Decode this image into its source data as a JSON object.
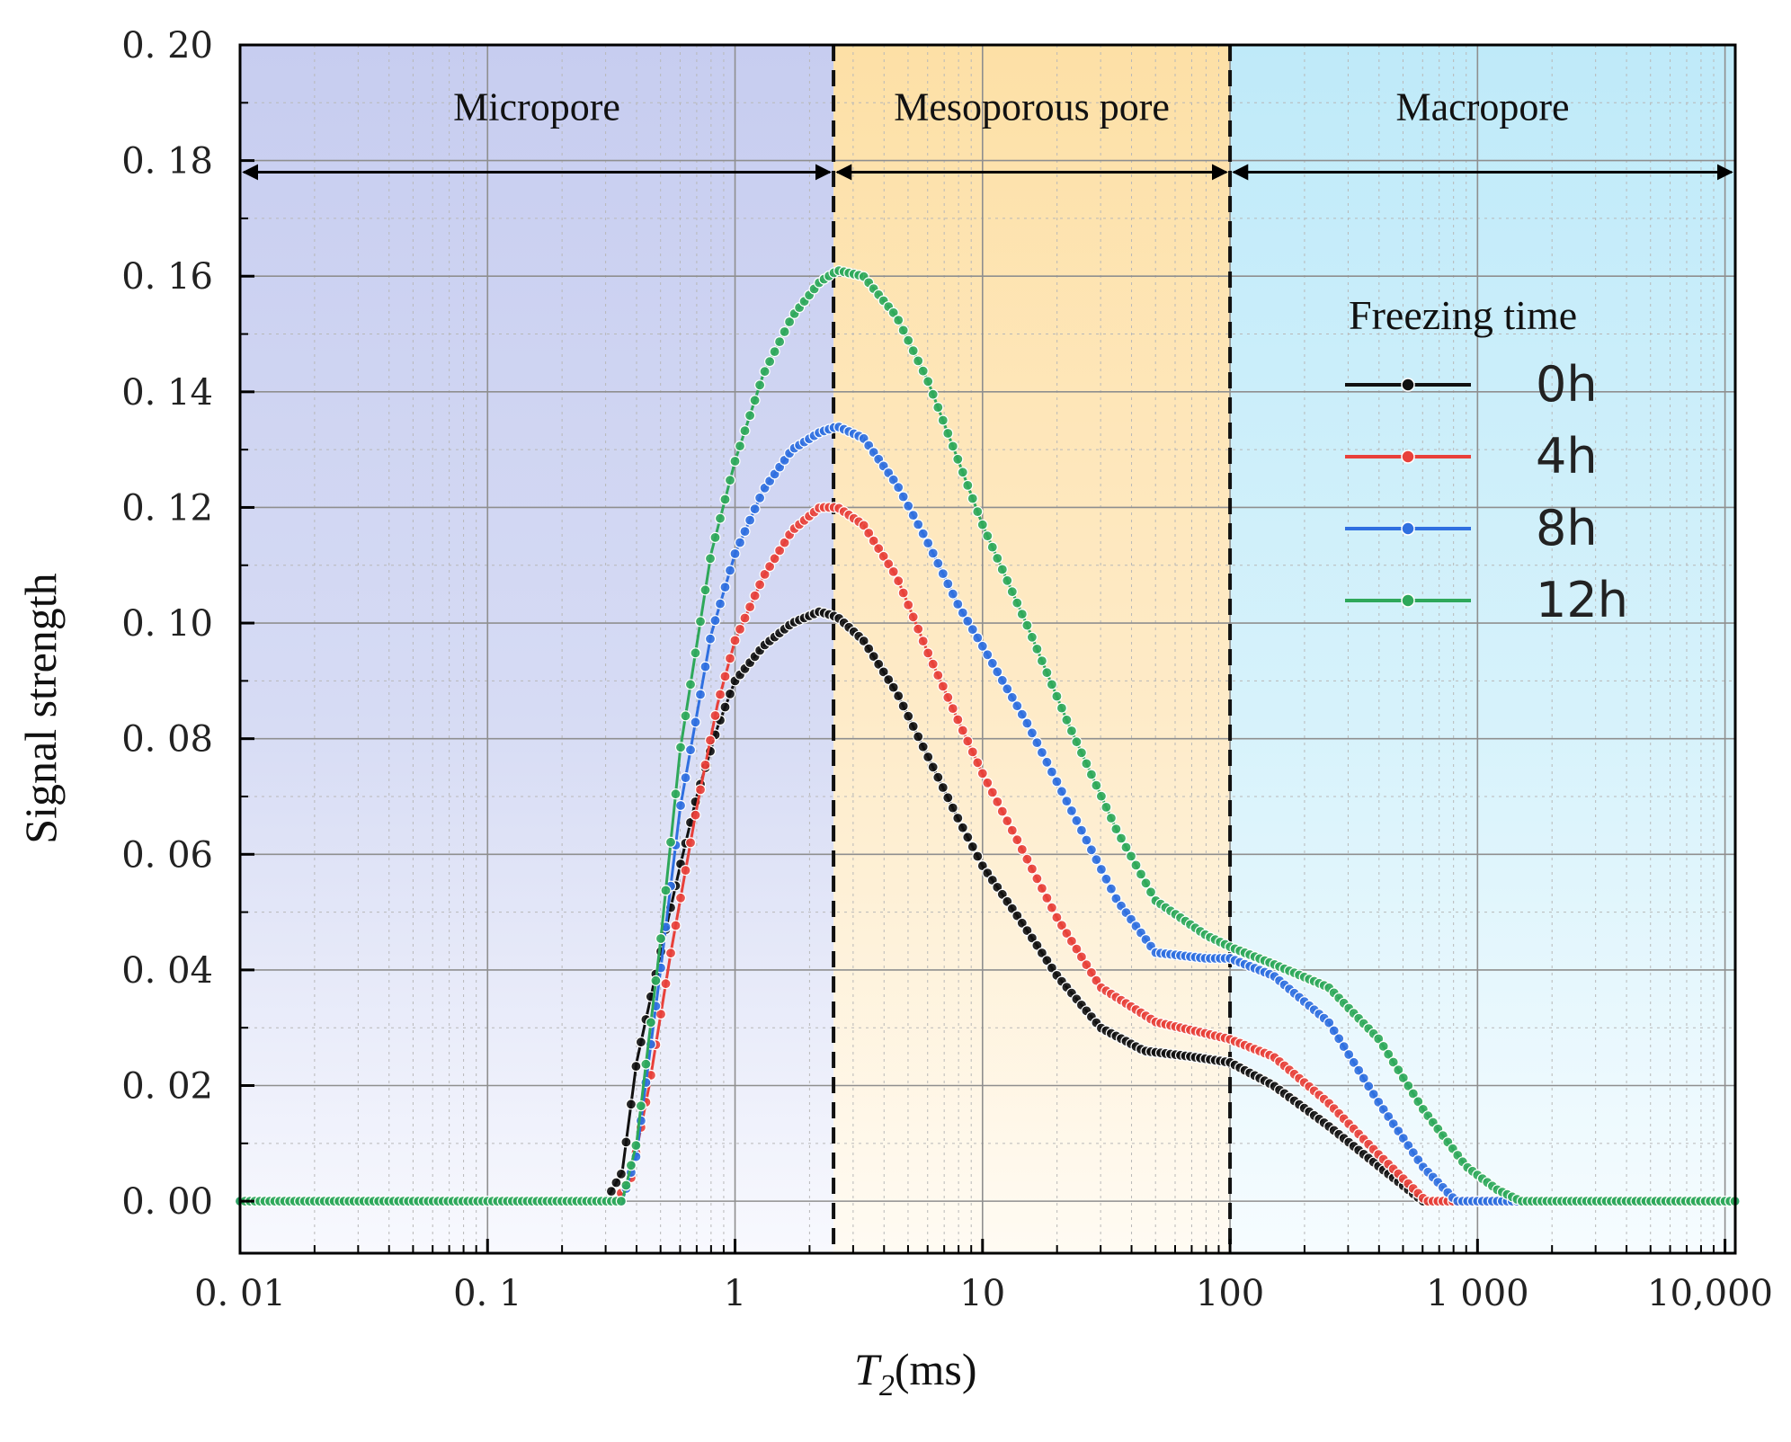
{
  "chart_data": {
    "type": "line",
    "xlabel_main": "T",
    "xlabel_sub": "2",
    "xlabel_unit": "(ms)",
    "ylabel": "Signal strength",
    "xscale": "log",
    "xlim": [
      0.01,
      11000
    ],
    "ylim": [
      -0.009,
      0.2
    ],
    "x_ticks": [
      {
        "value": 0.01,
        "label": "0. 01"
      },
      {
        "value": 0.1,
        "label": "0. 1"
      },
      {
        "value": 1,
        "label": "1"
      },
      {
        "value": 10,
        "label": "10"
      },
      {
        "value": 100,
        "label": "100"
      },
      {
        "value": 1000,
        "label": "1 000"
      },
      {
        "value": 10000,
        "label": "10,000"
      }
    ],
    "y_ticks": [
      {
        "value": 0.0,
        "label": "0. 00"
      },
      {
        "value": 0.02,
        "label": "0. 02"
      },
      {
        "value": 0.04,
        "label": "0. 04"
      },
      {
        "value": 0.06,
        "label": "0. 06"
      },
      {
        "value": 0.08,
        "label": "0. 08"
      },
      {
        "value": 0.1,
        "label": "0. 10"
      },
      {
        "value": 0.12,
        "label": "0. 12"
      },
      {
        "value": 0.14,
        "label": "0. 14"
      },
      {
        "value": 0.16,
        "label": "0. 16"
      },
      {
        "value": 0.18,
        "label": "0. 18"
      },
      {
        "value": 0.2,
        "label": "0. 20"
      }
    ],
    "regions": [
      {
        "label": "Micropore",
        "from": 0.01,
        "to": 2.5,
        "color": "#c9d0f0"
      },
      {
        "label": "Mesoporous pore",
        "from": 2.5,
        "to": 100,
        "color": "#fde3ae"
      },
      {
        "label": "Macropore",
        "from": 100,
        "to": 11000,
        "color": "#c4ecf9"
      }
    ],
    "region_boundaries": [
      2.5,
      100
    ],
    "arrow_level": 0.178,
    "legend_title": "Freezing time",
    "series": [
      {
        "name": "0h",
        "color": "#111111",
        "points": [
          [
            0.01,
            0
          ],
          [
            0.3,
            0
          ],
          [
            0.35,
            0.005
          ],
          [
            0.4,
            0.024
          ],
          [
            0.5,
            0.043
          ],
          [
            0.6,
            0.058
          ],
          [
            0.7,
            0.07
          ],
          [
            0.85,
            0.082
          ],
          [
            1.0,
            0.09
          ],
          [
            1.3,
            0.096
          ],
          [
            1.7,
            0.1
          ],
          [
            2.2,
            0.102
          ],
          [
            2.6,
            0.101
          ],
          [
            3.3,
            0.097
          ],
          [
            4.5,
            0.088
          ],
          [
            6,
            0.077
          ],
          [
            8,
            0.066
          ],
          [
            10,
            0.058
          ],
          [
            14,
            0.049
          ],
          [
            20,
            0.039
          ],
          [
            30,
            0.03
          ],
          [
            45,
            0.026
          ],
          [
            70,
            0.025
          ],
          [
            100,
            0.024
          ],
          [
            150,
            0.02
          ],
          [
            250,
            0.013
          ],
          [
            400,
            0.006
          ],
          [
            600,
            0.0
          ],
          [
            11000,
            0.0
          ]
        ]
      },
      {
        "name": "4h",
        "color": "#e8403a",
        "points": [
          [
            0.01,
            0
          ],
          [
            0.33,
            0
          ],
          [
            0.38,
            0.004
          ],
          [
            0.45,
            0.02
          ],
          [
            0.55,
            0.043
          ],
          [
            0.7,
            0.068
          ],
          [
            0.85,
            0.086
          ],
          [
            1.0,
            0.097
          ],
          [
            1.3,
            0.108
          ],
          [
            1.7,
            0.116
          ],
          [
            2.2,
            0.12
          ],
          [
            2.6,
            0.12
          ],
          [
            3.3,
            0.117
          ],
          [
            4.5,
            0.108
          ],
          [
            6,
            0.095
          ],
          [
            8,
            0.083
          ],
          [
            10,
            0.074
          ],
          [
            14,
            0.062
          ],
          [
            20,
            0.049
          ],
          [
            30,
            0.037
          ],
          [
            50,
            0.031
          ],
          [
            80,
            0.029
          ],
          [
            100,
            0.028
          ],
          [
            150,
            0.025
          ],
          [
            250,
            0.017
          ],
          [
            400,
            0.008
          ],
          [
            620,
            0.0
          ],
          [
            11000,
            0.0
          ]
        ]
      },
      {
        "name": "8h",
        "color": "#2f6fe0",
        "points": [
          [
            0.01,
            0
          ],
          [
            0.35,
            0
          ],
          [
            0.4,
            0.008
          ],
          [
            0.5,
            0.04
          ],
          [
            0.6,
            0.068
          ],
          [
            0.8,
            0.098
          ],
          [
            1.0,
            0.112
          ],
          [
            1.3,
            0.123
          ],
          [
            1.7,
            0.13
          ],
          [
            2.2,
            0.133
          ],
          [
            2.6,
            0.134
          ],
          [
            3.3,
            0.132
          ],
          [
            4.5,
            0.124
          ],
          [
            6,
            0.114
          ],
          [
            8,
            0.103
          ],
          [
            10,
            0.096
          ],
          [
            15,
            0.083
          ],
          [
            22,
            0.069
          ],
          [
            35,
            0.052
          ],
          [
            50,
            0.043
          ],
          [
            80,
            0.042
          ],
          [
            100,
            0.042
          ],
          [
            150,
            0.039
          ],
          [
            250,
            0.031
          ],
          [
            400,
            0.017
          ],
          [
            600,
            0.006
          ],
          [
            820,
            0.0
          ],
          [
            11000,
            0.0
          ]
        ]
      },
      {
        "name": "12h",
        "color": "#2ea85a",
        "points": [
          [
            0.01,
            0
          ],
          [
            0.35,
            0
          ],
          [
            0.4,
            0.01
          ],
          [
            0.5,
            0.045
          ],
          [
            0.6,
            0.078
          ],
          [
            0.8,
            0.112
          ],
          [
            1.0,
            0.128
          ],
          [
            1.3,
            0.143
          ],
          [
            1.7,
            0.153
          ],
          [
            2.2,
            0.159
          ],
          [
            2.6,
            0.161
          ],
          [
            3.3,
            0.16
          ],
          [
            4.5,
            0.153
          ],
          [
            6,
            0.142
          ],
          [
            8,
            0.128
          ],
          [
            10,
            0.117
          ],
          [
            15,
            0.1
          ],
          [
            22,
            0.083
          ],
          [
            35,
            0.064
          ],
          [
            50,
            0.052
          ],
          [
            80,
            0.046
          ],
          [
            100,
            0.044
          ],
          [
            150,
            0.041
          ],
          [
            250,
            0.037
          ],
          [
            400,
            0.028
          ],
          [
            600,
            0.016
          ],
          [
            900,
            0.006
          ],
          [
            1200,
            0.002
          ],
          [
            1500,
            0.0
          ],
          [
            11000,
            0.0
          ]
        ]
      }
    ]
  }
}
